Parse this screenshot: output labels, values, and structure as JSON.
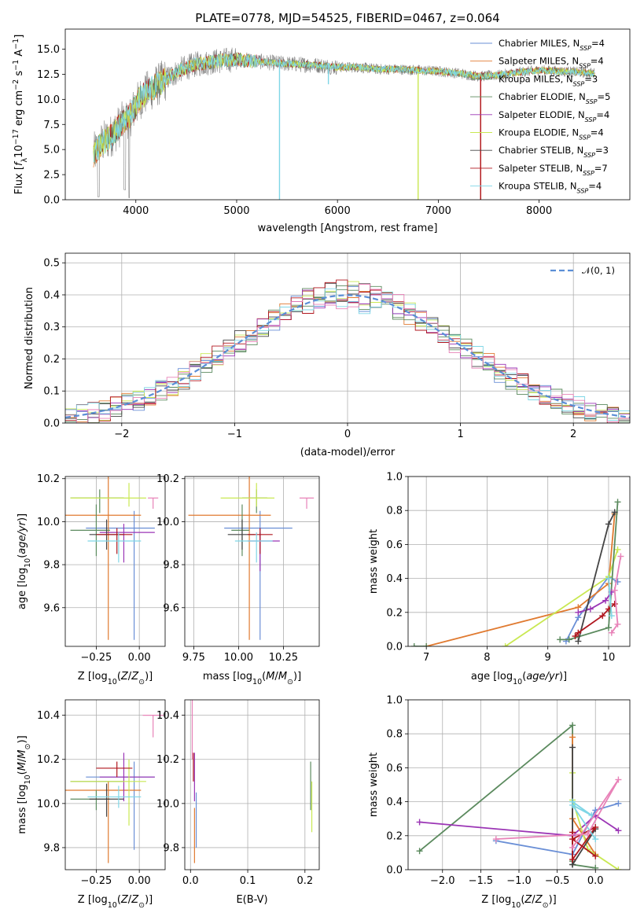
{
  "figure": {
    "title": "PLATE=0778, MJD=54525, FIBERID=0467, z=0.064"
  },
  "colors": {
    "Chabrier MILES": "#6a8fd6",
    "Salpeter MILES": "#e07a30",
    "Kroupa MILES": "#5b8a5e",
    "Chabrier ELODIE": "#5b8a5e",
    "Salpeter ELODIE": "#9b35b5",
    "Kroupa ELODIE": "#c9e852",
    "Chabrier STELIB": "#444444",
    "Salpeter STELIB": "#b0161e",
    "Kroupa STELIB": "#7fd6e6",
    "pink": "#e882b8",
    "normal": "#5b8ed6",
    "grid": "#b0b0b0",
    "data": "#808080"
  },
  "chart_data": [
    {
      "id": "spectrum",
      "type": "line",
      "title": "PLATE=0778, MJD=54525, FIBERID=0467, z=0.064",
      "xlabel": "wavelength [Angstrom, rest frame]",
      "ylabel": "Flux [f_λ10^-17 erg cm^-2 s^-1 A^-1]",
      "xlim": [
        3300,
        8900
      ],
      "ylim": [
        0,
        17
      ],
      "xticks": [
        4000,
        5000,
        6000,
        7000,
        8000
      ],
      "yticks": [
        0.0,
        2.5,
        5.0,
        7.5,
        10.0,
        12.5,
        15.0
      ],
      "grid": false,
      "legend_position": "upper right",
      "continuum": {
        "x": [
          3580,
          3650,
          3750,
          3850,
          3950,
          4050,
          4150,
          4300,
          4450,
          4600,
          4800,
          5000,
          5200,
          5400,
          5600,
          5800,
          6000,
          6200,
          6400,
          6600,
          6800,
          7000,
          7200,
          7400,
          7600,
          7800,
          8000,
          8200,
          8400,
          8550
        ],
        "y": [
          4.5,
          5.5,
          6.3,
          7.5,
          8.5,
          10.2,
          11.0,
          12.0,
          13.0,
          13.5,
          13.8,
          14.0,
          13.8,
          13.6,
          13.5,
          13.4,
          13.2,
          13.2,
          13.0,
          13.0,
          12.9,
          12.8,
          12.6,
          12.3,
          12.4,
          12.7,
          12.9,
          12.8,
          12.7,
          12.6
        ]
      },
      "series": [
        {
          "name": "Chabrier MILES",
          "nssp": "4"
        },
        {
          "name": "Salpeter MILES",
          "nssp": "4"
        },
        {
          "name": "Kroupa MILES",
          "nssp": "3"
        },
        {
          "name": "Chabrier ELODIE",
          "nssp": "5"
        },
        {
          "name": "Salpeter ELODIE",
          "nssp": "4"
        },
        {
          "name": "Kroupa ELODIE",
          "nssp": "4"
        },
        {
          "name": "Chabrier STELIB",
          "nssp": "3"
        },
        {
          "name": "Salpeter STELIB",
          "nssp": "7"
        },
        {
          "name": "Kroupa STELIB",
          "nssp": "4"
        }
      ]
    },
    {
      "id": "residuals",
      "type": "histogram",
      "xlabel": "(data-model)/error",
      "ylabel": "Normed distribution",
      "xlim": [
        -2.5,
        2.5
      ],
      "ylim": [
        0,
        0.53
      ],
      "xticks": [
        -2,
        -1,
        0,
        1,
        2
      ],
      "yticks": [
        0.0,
        0.1,
        0.2,
        0.3,
        0.4,
        0.5
      ],
      "grid": true,
      "legend": {
        "label": "𝒩(0, 1)",
        "position": "upper right"
      },
      "bin_width": 0.1
    },
    {
      "id": "age-vs-Z",
      "type": "errorbar",
      "xlabel": "Z [log10(Z/Z⊙)]",
      "ylabel": "age [log10(age/yr)]",
      "xlim": [
        -0.43,
        0.15
      ],
      "ylim": [
        9.42,
        10.21
      ],
      "xticks": [
        -0.25,
        0.0
      ],
      "yticks": [
        9.6,
        9.8,
        10.0,
        10.2
      ],
      "grid": true,
      "points": [
        {
          "series": "Chabrier MILES",
          "x": -0.03,
          "y": 9.97,
          "xerr": [
            0.28,
            0.12
          ],
          "yerr": [
            0.52,
            0.08
          ]
        },
        {
          "series": "Salpeter MILES",
          "x": -0.18,
          "y": 10.03,
          "xerr": [
            0.27,
            0.19
          ],
          "yerr": [
            0.58,
            0.28
          ]
        },
        {
          "series": "Kroupa MILES",
          "x": -0.23,
          "y": 10.11,
          "xerr": [
            0.17,
            0.14
          ],
          "yerr": [
            0.07,
            0.04
          ]
        },
        {
          "series": "Chabrier ELODIE",
          "x": -0.25,
          "y": 9.96,
          "xerr": [
            0.15,
            0.08
          ],
          "yerr": [
            0.12,
            0.12
          ]
        },
        {
          "series": "Salpeter ELODIE",
          "x": -0.09,
          "y": 9.95,
          "xerr": [
            0.14,
            0.18
          ],
          "yerr": [
            0.14,
            0.04
          ]
        },
        {
          "series": "Kroupa ELODIE",
          "x": -0.06,
          "y": 10.11,
          "xerr": [
            0.34,
            0.1
          ],
          "yerr": [
            0.04,
            0.07
          ]
        },
        {
          "series": "Chabrier STELIB",
          "x": -0.19,
          "y": 9.94,
          "xerr": [
            0.1,
            0.1
          ],
          "yerr": [
            0.07,
            0.07
          ]
        },
        {
          "series": "Salpeter STELIB",
          "x": -0.13,
          "y": 9.94,
          "xerr": [
            0.12,
            0.09
          ],
          "yerr": [
            0.09,
            0.03
          ]
        },
        {
          "series": "Kroupa STELIB",
          "x": -0.12,
          "y": 9.91,
          "xerr": [
            0.18,
            0.13
          ],
          "yerr": [
            0.1,
            0.04
          ]
        },
        {
          "series": "Extra",
          "x": 0.08,
          "y": 10.11,
          "xerr": [
            0.03,
            0.03
          ],
          "yerr": [
            0.05,
            0.0
          ]
        }
      ]
    },
    {
      "id": "age-vs-mass",
      "type": "errorbar",
      "xlabel": "mass [log10(M/M⊙)]",
      "ylabel": "",
      "xlim": [
        9.7,
        10.45
      ],
      "ylim": [
        9.42,
        10.21
      ],
      "xticks": [
        9.75,
        10.0,
        10.25
      ],
      "yticks": [
        9.6,
        9.8,
        10.0,
        10.2
      ],
      "grid": true,
      "points": [
        {
          "series": "Chabrier MILES",
          "x": 10.12,
          "y": 9.97,
          "xerr": [
            0.2,
            0.18
          ],
          "yerr": [
            0.52,
            0.08
          ]
        },
        {
          "series": "Salpeter MILES",
          "x": 10.06,
          "y": 10.03,
          "xerr": [
            0.34,
            0.12
          ],
          "yerr": [
            0.58,
            0.28
          ]
        },
        {
          "series": "Kroupa MILES",
          "x": 10.1,
          "y": 10.11,
          "xerr": [
            0.08,
            0.06
          ],
          "yerr": [
            0.07,
            0.04
          ]
        },
        {
          "series": "Chabrier ELODIE",
          "x": 10.02,
          "y": 9.96,
          "xerr": [
            0.06,
            0.04
          ],
          "yerr": [
            0.12,
            0.12
          ]
        },
        {
          "series": "Salpeter ELODIE",
          "x": 10.12,
          "y": 9.91,
          "xerr": [
            0.07,
            0.11
          ],
          "yerr": [
            0.14,
            0.04
          ]
        },
        {
          "series": "Kroupa ELODIE",
          "x": 10.1,
          "y": 10.11,
          "xerr": [
            0.2,
            0.1
          ],
          "yerr": [
            0.04,
            0.07
          ]
        },
        {
          "series": "Chabrier STELIB",
          "x": 10.02,
          "y": 9.94,
          "xerr": [
            0.08,
            0.07
          ],
          "yerr": [
            0.07,
            0.07
          ]
        },
        {
          "series": "Salpeter STELIB",
          "x": 10.12,
          "y": 9.94,
          "xerr": [
            0.07,
            0.07
          ],
          "yerr": [
            0.09,
            0.03
          ]
        },
        {
          "series": "Kroupa STELIB",
          "x": 10.1,
          "y": 9.91,
          "xerr": [
            0.12,
            0.09
          ],
          "yerr": [
            0.1,
            0.04
          ]
        },
        {
          "series": "Extra",
          "x": 10.38,
          "y": 10.11,
          "xerr": [
            0.04,
            0.04
          ],
          "yerr": [
            0.05,
            0.0
          ]
        }
      ]
    },
    {
      "id": "mass-weight-vs-age",
      "type": "line",
      "xlabel": "age [log10(age/yr)]",
      "ylabel": "mass weight",
      "xlim": [
        6.7,
        10.35
      ],
      "ylim": [
        0,
        1.0
      ],
      "xticks": [
        7,
        8,
        9,
        10
      ],
      "yticks": [
        0.0,
        0.2,
        0.4,
        0.6,
        0.8,
        1.0
      ],
      "grid": true,
      "series": [
        {
          "name": "Chabrier MILES",
          "x": [
            9.3,
            9.5,
            10.0,
            10.15
          ],
          "y": [
            0.03,
            0.17,
            0.41,
            0.38
          ]
        },
        {
          "name": "Salpeter MILES",
          "x": [
            7.0,
            9.5,
            10.0,
            10.1
          ],
          "y": [
            0.0,
            0.23,
            0.37,
            0.78
          ]
        },
        {
          "name": "Kroupa ELODIE",
          "x": [
            8.3,
            10.0,
            10.15
          ],
          "y": [
            0.0,
            0.41,
            0.57
          ]
        },
        {
          "name": "Chabrier ELODIE",
          "x": [
            9.2,
            9.35,
            10.0,
            10.15
          ],
          "y": [
            0.04,
            0.04,
            0.11,
            0.85
          ]
        },
        {
          "name": "Chabrier ELODIE",
          "x": [
            6.8,
            7.0
          ],
          "y": [
            0.0,
            0.0
          ]
        },
        {
          "name": "Salpeter ELODIE",
          "x": [
            9.5,
            9.7,
            9.95,
            10.05
          ],
          "y": [
            0.2,
            0.22,
            0.27,
            0.32
          ]
        },
        {
          "name": "Chabrier STELIB",
          "x": [
            9.5,
            10.0,
            10.1
          ],
          "y": [
            0.03,
            0.72,
            0.79
          ]
        },
        {
          "name": "Salpeter STELIB",
          "x": [
            9.45,
            9.5,
            9.9,
            10.0,
            10.1
          ],
          "y": [
            0.06,
            0.08,
            0.18,
            0.22,
            0.25
          ]
        },
        {
          "name": "Kroupa STELIB",
          "x": [
            10.0,
            10.05
          ],
          "y": [
            0.4,
            0.18
          ]
        },
        {
          "name": "Extra",
          "x": [
            10.05,
            10.15,
            10.1,
            10.2
          ],
          "y": [
            0.08,
            0.13,
            0.33,
            0.53
          ]
        }
      ]
    },
    {
      "id": "mass-vs-Z",
      "type": "errorbar",
      "xlabel": "Z [log10(Z/Z⊙)]",
      "ylabel": "mass [log10(M/M⊙)]",
      "xlim": [
        -0.43,
        0.15
      ],
      "ylim": [
        9.7,
        10.47
      ],
      "xticks": [
        -0.25,
        0.0
      ],
      "yticks": [
        9.8,
        10.0,
        10.2,
        10.4
      ],
      "grid": true,
      "points": [
        {
          "series": "Chabrier MILES",
          "x": -0.03,
          "y": 10.12,
          "xerr": [
            0.28,
            0.12
          ],
          "yerr": [
            0.33,
            0.07
          ]
        },
        {
          "series": "Salpeter MILES",
          "x": -0.18,
          "y": 10.06,
          "xerr": [
            0.27,
            0.19
          ],
          "yerr": [
            0.33,
            0.04
          ]
        },
        {
          "series": "Kroupa MILES",
          "x": -0.23,
          "y": 10.1,
          "xerr": [
            0.17,
            0.14
          ],
          "yerr": [
            0.0,
            0.0
          ]
        },
        {
          "series": "Chabrier ELODIE",
          "x": -0.25,
          "y": 10.02,
          "xerr": [
            0.15,
            0.08
          ],
          "yerr": [
            0.05,
            0.04
          ]
        },
        {
          "series": "Salpeter ELODIE",
          "x": -0.09,
          "y": 10.12,
          "xerr": [
            0.14,
            0.18
          ],
          "yerr": [
            0.11,
            0.11
          ]
        },
        {
          "series": "Kroupa ELODIE",
          "x": -0.06,
          "y": 10.1,
          "xerr": [
            0.34,
            0.1
          ],
          "yerr": [
            0.2,
            0.1
          ]
        },
        {
          "series": "Chabrier STELIB",
          "x": -0.19,
          "y": 10.02,
          "xerr": [
            0.1,
            0.1
          ],
          "yerr": [
            0.08,
            0.07
          ]
        },
        {
          "series": "Salpeter STELIB",
          "x": -0.13,
          "y": 10.16,
          "xerr": [
            0.12,
            0.09
          ],
          "yerr": [
            0.04,
            0.03
          ]
        },
        {
          "series": "Kroupa STELIB",
          "x": -0.12,
          "y": 10.03,
          "xerr": [
            0.18,
            0.13
          ],
          "yerr": [
            0.05,
            0.05
          ]
        },
        {
          "series": "Extra",
          "x": 0.08,
          "y": 10.4,
          "xerr": [
            0.06,
            0.06
          ],
          "yerr": [
            0.1,
            0.0
          ]
        }
      ]
    },
    {
      "id": "mass-vs-ebv",
      "type": "errorbar",
      "xlabel": "E(B-V)",
      "ylabel": "",
      "xlim": [
        -0.01,
        0.225
      ],
      "ylim": [
        9.7,
        10.47
      ],
      "xticks": [
        0.0,
        0.1,
        0.2
      ],
      "yticks": [
        9.8,
        10.0,
        10.2,
        10.4
      ],
      "grid": true,
      "points": [
        {
          "series": "Chabrier MILES",
          "x": 0.01,
          "y": 10.0,
          "xerr": [
            0.0,
            0.0
          ],
          "yerr": [
            0.2,
            0.05
          ]
        },
        {
          "series": "Salpeter MILES",
          "x": 0.007,
          "y": 9.93,
          "xerr": [
            0.0,
            0.0
          ],
          "yerr": [
            0.2,
            0.05
          ]
        },
        {
          "series": "Chabrier ELODIE",
          "x": 0.21,
          "y": 10.07,
          "xerr": [
            0.0,
            0.0
          ],
          "yerr": [
            0.1,
            0.12
          ]
        },
        {
          "series": "Kroupa ELODIE",
          "x": 0.212,
          "y": 10.0,
          "xerr": [
            0.0,
            0.0
          ],
          "yerr": [
            0.13,
            0.1
          ]
        },
        {
          "series": "Salpeter STELIB",
          "x": 0.005,
          "y": 10.16,
          "xerr": [
            0.0,
            0.0
          ],
          "yerr": [
            0.06,
            0.07
          ]
        },
        {
          "series": "Salpeter ELODIE",
          "x": 0.007,
          "y": 10.12,
          "xerr": [
            0.0,
            0.0
          ],
          "yerr": [
            0.11,
            0.11
          ]
        },
        {
          "series": "Extra",
          "x": 0.003,
          "y": 10.3,
          "xerr": [
            0.0,
            0.0
          ],
          "yerr": [
            0.1,
            0.17
          ]
        }
      ]
    },
    {
      "id": "mass-weight-vs-Z",
      "type": "line",
      "xlabel": "Z [log10(Z/Z⊙)]",
      "ylabel": "mass weight",
      "xlim": [
        -2.45,
        0.45
      ],
      "ylim": [
        0,
        1.0
      ],
      "xticks": [
        -2.0,
        -1.5,
        -1.0,
        -0.5,
        0.0
      ],
      "yticks": [
        0.0,
        0.2,
        0.4,
        0.6,
        0.8,
        1.0
      ],
      "grid": true,
      "series": [
        {
          "name": "Chabrier MILES",
          "x": [
            -1.3,
            -0.3,
            0.0,
            0.3
          ],
          "y": [
            0.17,
            0.09,
            0.35,
            0.39
          ]
        },
        {
          "name": "Chabrier ELODIE",
          "x": [
            -2.3,
            -0.3,
            -0.3,
            -0.3,
            0.0
          ],
          "y": [
            0.11,
            0.85,
            0.05,
            0.03,
            0.01
          ]
        },
        {
          "name": "Salpeter ELODIE",
          "x": [
            -2.3,
            -0.3,
            0.0,
            0.3
          ],
          "y": [
            0.28,
            0.2,
            0.32,
            0.23
          ]
        },
        {
          "name": "Salpeter MILES",
          "x": [
            -0.3,
            -0.3,
            0.0
          ],
          "y": [
            0.78,
            0.3,
            0.09
          ]
        },
        {
          "name": "Kroupa ELODIE",
          "x": [
            -0.3,
            -0.3,
            -0.1,
            0.3
          ],
          "y": [
            0.57,
            0.41,
            0.12,
            0.0
          ]
        },
        {
          "name": "Chabrier STELIB",
          "x": [
            -0.3,
            -0.3,
            0.0
          ],
          "y": [
            0.72,
            0.03,
            0.24
          ]
        },
        {
          "name": "Salpeter STELIB",
          "x": [
            -0.3,
            -0.3,
            0.0,
            -0.3,
            0.0
          ],
          "y": [
            0.22,
            0.06,
            0.25,
            0.18,
            0.08
          ]
        },
        {
          "name": "Kroupa STELIB",
          "x": [
            -0.3,
            -0.05,
            -0.3,
            0.0
          ],
          "y": [
            0.4,
            0.32,
            0.38,
            0.18
          ]
        },
        {
          "name": "Extra",
          "x": [
            -1.3,
            -0.1,
            0.3,
            -0.3
          ],
          "y": [
            0.18,
            0.21,
            0.53,
            0.13
          ]
        }
      ]
    }
  ]
}
